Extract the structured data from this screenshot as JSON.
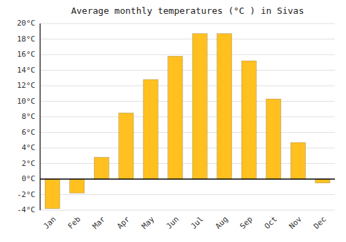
{
  "chart_data": {
    "type": "bar",
    "title": "Average monthly temperatures (°C ) in Sivas",
    "categories": [
      "Jan",
      "Feb",
      "Mar",
      "Apr",
      "May",
      "Jun",
      "Jul",
      "Aug",
      "Sep",
      "Oct",
      "Nov",
      "Dec"
    ],
    "values": [
      -3.8,
      -1.8,
      2.8,
      8.5,
      12.8,
      15.8,
      18.7,
      18.7,
      15.2,
      10.3,
      4.7,
      -0.5
    ],
    "color": "#FFC020",
    "ylim": [
      -4,
      20
    ],
    "yticks": [
      {
        "value": -4,
        "label": "-4°C"
      },
      {
        "value": -2,
        "label": "-2°C"
      },
      {
        "value": 0,
        "label": "0°C"
      },
      {
        "value": 2,
        "label": "2°C"
      },
      {
        "value": 4,
        "label": "4°C"
      },
      {
        "value": 6,
        "label": "6°C"
      },
      {
        "value": 8,
        "label": "8°C"
      },
      {
        "value": 10,
        "label": "10°C"
      },
      {
        "value": 12,
        "label": "12°C"
      },
      {
        "value": 14,
        "label": "14°C"
      },
      {
        "value": 16,
        "label": "16°C"
      },
      {
        "value": 18,
        "label": "18°C"
      },
      {
        "value": 20,
        "label": "20°C"
      }
    ],
    "grid": true
  }
}
